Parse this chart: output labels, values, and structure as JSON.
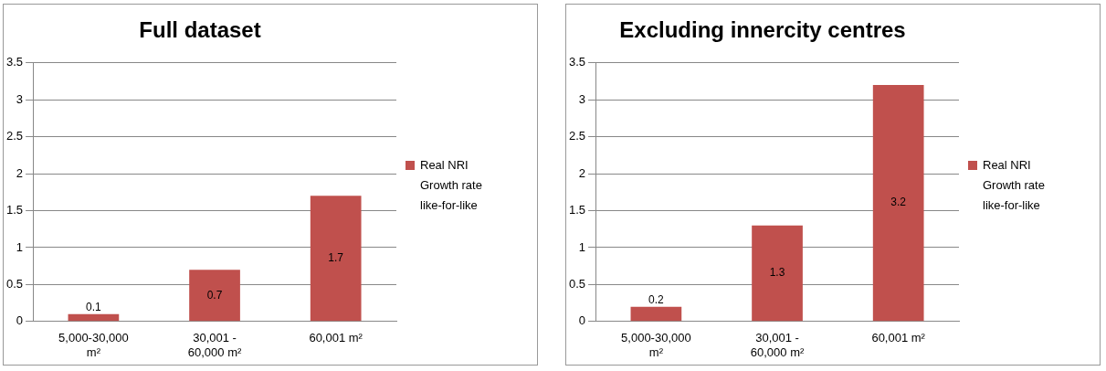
{
  "chart_data": [
    {
      "type": "bar",
      "title": "Full dataset",
      "categories": [
        "5,000-30,000 m²",
        "30,001 - 60,000 m²",
        "60,001 m²"
      ],
      "series": [
        {
          "name": "Real NRI Growth rate like-for-like",
          "color": "#c0504d",
          "values": [
            0.1,
            0.7,
            1.7
          ]
        }
      ],
      "ylim": [
        0,
        3.5
      ],
      "yticks": [
        0,
        0.5,
        1,
        1.5,
        2,
        2.5,
        3,
        3.5
      ],
      "grid": "y",
      "legend": "right",
      "data_labels": true
    },
    {
      "type": "bar",
      "title": "Excluding innercity centres",
      "categories": [
        "5,000-30,000 m²",
        "30,001 - 60,000 m²",
        "60,001 m²"
      ],
      "series": [
        {
          "name": "Real NRI Growth rate like-for-like",
          "color": "#c0504d",
          "values": [
            0.2,
            1.3,
            3.2
          ]
        }
      ],
      "ylim": [
        0,
        3.5
      ],
      "yticks": [
        0,
        0.5,
        1,
        1.5,
        2,
        2.5,
        3,
        3.5
      ],
      "grid": "y",
      "legend": "right",
      "data_labels": true
    }
  ]
}
